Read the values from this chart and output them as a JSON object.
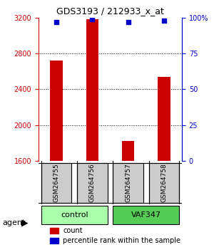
{
  "title": "GDS3193 / 212933_x_at",
  "samples": [
    "GSM264755",
    "GSM264756",
    "GSM264757",
    "GSM264758"
  ],
  "counts": [
    2720,
    3180,
    1820,
    2540
  ],
  "percentiles": [
    97,
    99,
    97,
    98
  ],
  "ylim_left": [
    1600,
    3200
  ],
  "ylim_right": [
    0,
    100
  ],
  "yticks_left": [
    1600,
    2000,
    2400,
    2800,
    3200
  ],
  "yticks_right": [
    0,
    25,
    50,
    75,
    100
  ],
  "ytick_labels_right": [
    "0",
    "25",
    "50",
    "75",
    "100%"
  ],
  "bar_color": "#cc0000",
  "dot_color": "#0000cc",
  "groups": [
    {
      "label": "control",
      "samples": [
        0,
        1
      ],
      "color": "#aaffaa"
    },
    {
      "label": "VAF347",
      "samples": [
        2,
        3
      ],
      "color": "#55cc55"
    }
  ],
  "agent_label": "agent",
  "legend_count_label": "count",
  "legend_pct_label": "percentile rank within the sample",
  "grid_color": "#000000",
  "axis_color_left": "#cc0000",
  "axis_color_right": "#0000cc",
  "sample_box_color": "#cccccc",
  "bar_width": 0.35
}
